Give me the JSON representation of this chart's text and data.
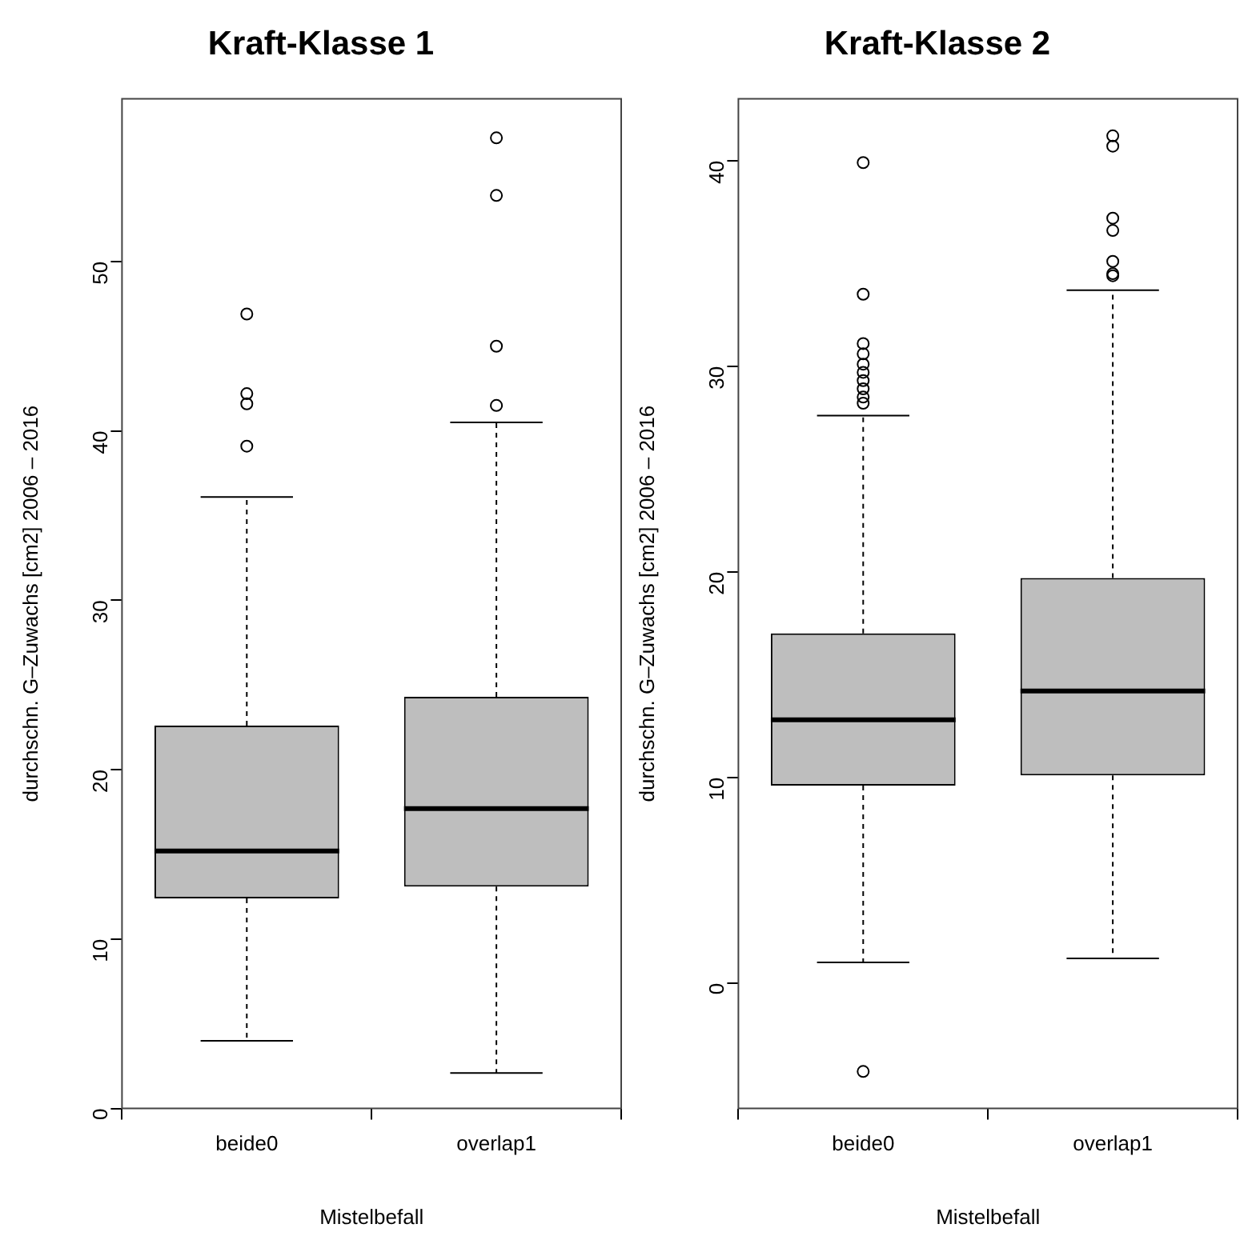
{
  "chart_data": [
    {
      "type": "box",
      "title": "Kraft-Klasse 1",
      "categories": [
        "beide0",
        "overlap1"
      ],
      "xlabel": "Mistelbefall",
      "ylabel": "durchschn. G–Zuwachs [cm2] 2006 – 2016",
      "ylim": [
        0,
        59.6
      ],
      "yticks": [
        0,
        10,
        20,
        30,
        40,
        50
      ],
      "boxes": [
        {
          "low": 4.0,
          "q1": 12.4,
          "median": 15.2,
          "q3": 22.6,
          "high": 36.1,
          "outliers": [
            39.1,
            41.6,
            42.2,
            46.9
          ]
        },
        {
          "low": 2.1,
          "q1": 13.1,
          "median": 17.7,
          "q3": 24.3,
          "high": 40.5,
          "outliers": [
            41.5,
            45.0,
            53.9,
            57.3
          ]
        }
      ]
    },
    {
      "type": "box",
      "title": "Kraft-Klasse 2",
      "categories": [
        "beide0",
        "overlap1"
      ],
      "xlabel": "Mistelbefall",
      "ylabel": "durchschn. G–Zuwachs [cm2] 2006 – 2016",
      "ylim": [
        -6.1,
        43.0
      ],
      "yticks": [
        0,
        10,
        20,
        30,
        40
      ],
      "boxes": [
        {
          "low": 1.0,
          "q1": 9.6,
          "median": 12.8,
          "q3": 17.0,
          "high": 27.6,
          "outliers": [
            -4.3,
            28.2,
            28.5,
            28.9,
            29.3,
            29.7,
            30.1,
            30.6,
            31.1,
            33.5,
            39.9
          ]
        },
        {
          "low": 1.2,
          "q1": 10.1,
          "median": 14.2,
          "q3": 19.7,
          "high": 33.7,
          "outliers": [
            34.4,
            34.5,
            35.1,
            36.6,
            37.2,
            40.7,
            41.2
          ]
        }
      ]
    }
  ]
}
